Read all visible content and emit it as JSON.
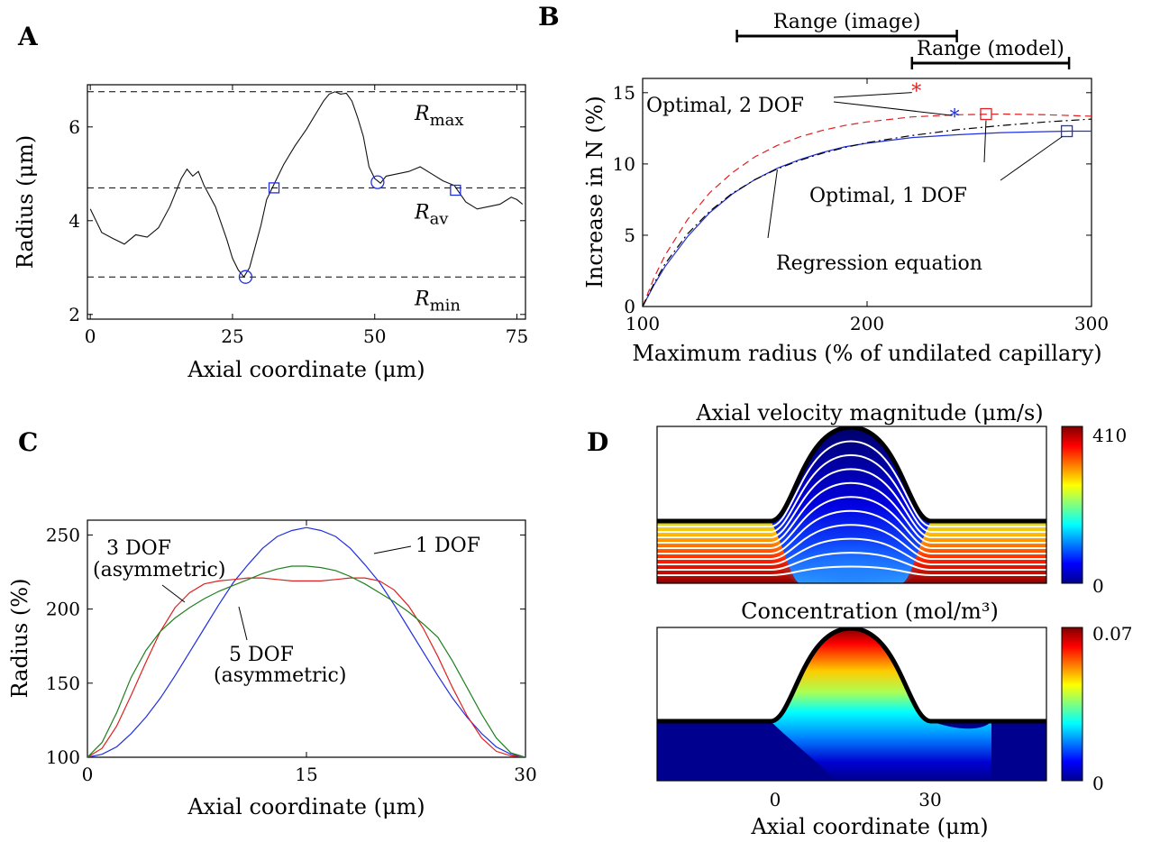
{
  "panels": {
    "A": {
      "label": "A"
    },
    "B": {
      "label": "B"
    },
    "C": {
      "label": "C"
    },
    "D": {
      "label": "D"
    }
  },
  "chart_data": [
    {
      "panel": "A",
      "type": "line",
      "xlabel": "Axial coordinate (μm)",
      "ylabel": "Radius (μm)",
      "xlim": [
        -0.5,
        76.5
      ],
      "ylim": [
        1.9,
        6.9
      ],
      "xticks": [
        0,
        25,
        50,
        75
      ],
      "yticks": [
        2,
        4,
        6
      ],
      "reference_lines": [
        {
          "name": "R_max",
          "main": "R",
          "sub": "max",
          "y": 6.75
        },
        {
          "name": "R_av",
          "main": "R",
          "sub": "av",
          "y": 4.7
        },
        {
          "name": "R_min",
          "main": "R",
          "sub": "min",
          "y": 2.8
        }
      ],
      "series": [
        {
          "x": [
            0,
            2,
            4,
            6,
            8,
            10,
            12,
            14,
            16,
            17,
            18,
            19,
            20,
            22,
            24,
            25,
            26,
            27,
            28,
            30,
            31,
            32,
            34,
            36,
            38,
            40,
            41,
            42,
            43,
            44,
            45,
            46,
            47,
            48,
            49,
            50,
            51,
            52,
            54,
            56,
            58,
            60,
            62,
            64,
            66,
            68,
            70,
            72,
            74,
            75,
            76
          ],
          "y": [
            4.25,
            3.75,
            3.62,
            3.5,
            3.7,
            3.65,
            3.85,
            4.3,
            4.9,
            5.1,
            4.95,
            5.05,
            4.75,
            4.3,
            3.6,
            3.2,
            2.95,
            2.8,
            3.0,
            3.9,
            4.45,
            4.7,
            5.2,
            5.6,
            5.95,
            6.35,
            6.55,
            6.7,
            6.75,
            6.7,
            6.72,
            6.55,
            6.2,
            5.8,
            5.15,
            4.9,
            4.8,
            4.95,
            5.0,
            5.05,
            5.15,
            5.0,
            4.85,
            4.75,
            4.4,
            4.25,
            4.3,
            4.35,
            4.5,
            4.45,
            4.35
          ]
        }
      ],
      "markers": [
        {
          "shape": "circle",
          "x": 27.3,
          "y": 2.8
        },
        {
          "shape": "circle",
          "x": 50.5,
          "y": 4.82
        },
        {
          "shape": "square",
          "x": 32.3,
          "y": 4.7
        },
        {
          "shape": "square",
          "x": 64.2,
          "y": 4.65
        }
      ]
    },
    {
      "panel": "B",
      "type": "line",
      "xlabel": "Maximum radius (% of undilated capillary)",
      "ylabel": "Increase in N (%)",
      "xlim": [
        100,
        300
      ],
      "ylim": [
        0,
        16
      ],
      "xticks": [
        100,
        200,
        300
      ],
      "yticks": [
        0,
        5,
        10,
        15
      ],
      "series": [
        {
          "style": "solid",
          "color": "#2030e0",
          "x": [
            100,
            105,
            110,
            120,
            130,
            140,
            150,
            160,
            170,
            180,
            190,
            200,
            220,
            240,
            260,
            280,
            290,
            300
          ],
          "y": [
            0,
            1.5,
            2.8,
            4.9,
            6.6,
            7.9,
            8.9,
            9.7,
            10.3,
            10.8,
            11.2,
            11.45,
            11.85,
            12.05,
            12.2,
            12.27,
            12.3,
            12.3
          ]
        },
        {
          "style": "dashed",
          "color": "#e02020",
          "x": [
            100,
            105,
            110,
            120,
            130,
            140,
            150,
            160,
            170,
            180,
            190,
            200,
            220,
            240,
            260,
            280,
            300
          ],
          "y": [
            0,
            2.0,
            3.6,
            6.1,
            8.0,
            9.4,
            10.5,
            11.3,
            11.9,
            12.35,
            12.7,
            12.95,
            13.3,
            13.45,
            13.5,
            13.45,
            13.35
          ]
        },
        {
          "style": "dashdot",
          "color": "#000000",
          "x": [
            100,
            105,
            110,
            120,
            130,
            140,
            150,
            160,
            170,
            180,
            190,
            200,
            220,
            240,
            260,
            280,
            300
          ],
          "y": [
            0,
            1.6,
            3.0,
            5.1,
            6.7,
            7.95,
            8.9,
            9.65,
            10.25,
            10.75,
            11.15,
            11.5,
            12.0,
            12.4,
            12.7,
            12.95,
            13.15
          ]
        }
      ],
      "markers": [
        {
          "shape": "star",
          "color": "#e02020",
          "x": 222,
          "y": 15.2
        },
        {
          "shape": "star",
          "color": "#2030e0",
          "x": 239,
          "y": 13.4
        },
        {
          "shape": "square",
          "color": "#e02020",
          "x": 253,
          "y": 13.5
        },
        {
          "shape": "square",
          "color": "#2030e0",
          "x": 289,
          "y": 12.3
        }
      ],
      "ranges": [
        {
          "label": "Range (image)",
          "x": [
            142,
            240
          ]
        },
        {
          "label": "Range (model)",
          "x": [
            220,
            290
          ]
        }
      ],
      "annotations": [
        {
          "text": "Optimal, 2 DOF",
          "target": "stars"
        },
        {
          "text": "Optimal, 1 DOF",
          "target": "squares"
        },
        {
          "text": "Regression equation",
          "target": "dashdot"
        }
      ]
    },
    {
      "panel": "C",
      "type": "line",
      "xlabel": "Axial coordinate (μm)",
      "ylabel": "Radius (%)",
      "xlim": [
        0,
        30
      ],
      "ylim": [
        100,
        260
      ],
      "xticks": [
        0,
        15,
        30
      ],
      "yticks": [
        100,
        150,
        200,
        250
      ],
      "series": [
        {
          "name": "1 DOF",
          "color": "#2030e0",
          "x": [
            0,
            1,
            2,
            3,
            4,
            5,
            6,
            7,
            8,
            9,
            10,
            11,
            12,
            13,
            14,
            15,
            16,
            17,
            18,
            19,
            20,
            21,
            22,
            23,
            24,
            25,
            26,
            27,
            28,
            29,
            30
          ],
          "y": [
            100,
            102,
            107,
            116,
            127,
            140,
            155,
            171,
            187,
            203,
            218,
            230,
            241,
            249,
            253,
            255,
            253,
            249,
            241,
            230,
            218,
            203,
            187,
            171,
            155,
            140,
            127,
            116,
            107,
            102,
            100
          ]
        },
        {
          "name": "3 DOF (asymmetric)",
          "color": "#e02020",
          "x": [
            0,
            1,
            2,
            3,
            4,
            5,
            6,
            7,
            8,
            9,
            10,
            11,
            12,
            13,
            14,
            15,
            16,
            17,
            18,
            19,
            20,
            21,
            22,
            23,
            24,
            25,
            26,
            27,
            28,
            29,
            30
          ],
          "y": [
            100,
            106,
            121,
            142,
            164,
            185,
            201,
            211,
            217,
            219,
            220,
            221,
            221,
            220,
            219,
            219,
            219,
            220,
            221,
            221,
            219,
            213,
            202,
            187,
            168,
            147,
            128,
            113,
            104,
            101,
            100
          ]
        },
        {
          "name": "5 DOF (asymmetric)",
          "color": "#208020",
          "x": [
            0,
            1,
            2,
            3,
            4,
            5,
            6,
            7,
            8,
            9,
            10,
            11,
            12,
            13,
            14,
            15,
            16,
            17,
            18,
            19,
            20,
            21,
            22,
            23,
            24,
            25,
            26,
            27,
            28,
            29,
            30
          ],
          "y": [
            100,
            110,
            130,
            154,
            172,
            185,
            194,
            201,
            207,
            212,
            216,
            220,
            224,
            227,
            229,
            229,
            228,
            226,
            222,
            217,
            211,
            205,
            198,
            190,
            181,
            165,
            147,
            129,
            113,
            103,
            100
          ]
        }
      ],
      "annotations": [
        {
          "text": "1 DOF"
        },
        {
          "text": "3 DOF",
          "text2": "(asymmetric)"
        },
        {
          "text": "5 DOF",
          "text2": "(asymmetric)"
        }
      ]
    },
    {
      "panel": "D",
      "type": "heatmap",
      "xlabel": "Axial coordinate (μm)",
      "xticks": [
        0,
        30
      ],
      "maps": [
        {
          "title": "Axial velocity magnitude (μm/s)",
          "cmin": 0,
          "cmax": 410,
          "cmin_label": "0",
          "cmax_label": "410"
        },
        {
          "title": "Concentration (mol/m³)",
          "cmin": 0,
          "cmax": 0.07,
          "cmin_label": "0",
          "cmax_label": "0.07"
        }
      ],
      "colormap": "jet"
    }
  ]
}
